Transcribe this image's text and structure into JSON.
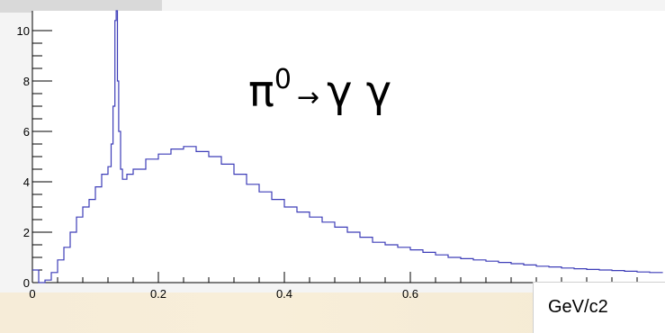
{
  "chart_data": {
    "type": "line",
    "title": "",
    "xlabel": "",
    "ylabel": "",
    "unit_label": "GeV/c2",
    "annotation": {
      "particle": "π",
      "superscript": "0",
      "arrow": "→",
      "products": "γ γ"
    },
    "xlim": [
      0,
      1.0
    ],
    "ylim": [
      0,
      10.4
    ],
    "x_ticks": [
      0,
      0.2,
      0.4,
      0.6
    ],
    "x_tick_labels": [
      "0",
      "0.2",
      "0.4",
      "0.6"
    ],
    "y_ticks": [
      0,
      2,
      4,
      6,
      8,
      10
    ],
    "y_tick_labels": [
      "0",
      "2",
      "4",
      "6",
      "8",
      "10"
    ],
    "line_color": "#3d3db8",
    "grid": false,
    "series": [
      {
        "x": [
          0.0,
          0.01,
          0.02,
          0.03,
          0.04,
          0.05,
          0.06,
          0.07,
          0.08,
          0.09,
          0.1,
          0.11,
          0.12,
          0.125,
          0.128,
          0.131,
          0.133,
          0.135,
          0.137,
          0.14,
          0.143,
          0.15,
          0.16,
          0.18,
          0.2,
          0.22,
          0.24,
          0.26,
          0.28,
          0.3,
          0.32,
          0.34,
          0.36,
          0.38,
          0.4,
          0.42,
          0.44,
          0.46,
          0.48,
          0.5,
          0.52,
          0.54,
          0.56,
          0.58,
          0.6,
          0.62,
          0.64,
          0.66,
          0.68,
          0.7,
          0.72,
          0.74,
          0.76,
          0.78,
          0.8,
          0.82,
          0.84,
          0.86,
          0.88,
          0.9,
          0.92,
          0.94,
          0.96,
          0.98,
          1.0
        ],
        "y": [
          0.5,
          0.0,
          0.1,
          0.4,
          0.9,
          1.4,
          2.0,
          2.6,
          3.0,
          3.3,
          3.8,
          4.3,
          4.6,
          5.5,
          7.0,
          10.4,
          11.5,
          8.0,
          6.0,
          4.5,
          4.1,
          4.3,
          4.5,
          4.9,
          5.1,
          5.3,
          5.4,
          5.2,
          5.0,
          4.7,
          4.3,
          3.9,
          3.6,
          3.3,
          3.0,
          2.8,
          2.6,
          2.4,
          2.2,
          2.0,
          1.8,
          1.6,
          1.5,
          1.4,
          1.3,
          1.2,
          1.1,
          1.0,
          0.95,
          0.9,
          0.85,
          0.8,
          0.75,
          0.7,
          0.65,
          0.62,
          0.58,
          0.55,
          0.52,
          0.5,
          0.48,
          0.45,
          0.42,
          0.4,
          0.38
        ]
      }
    ]
  }
}
